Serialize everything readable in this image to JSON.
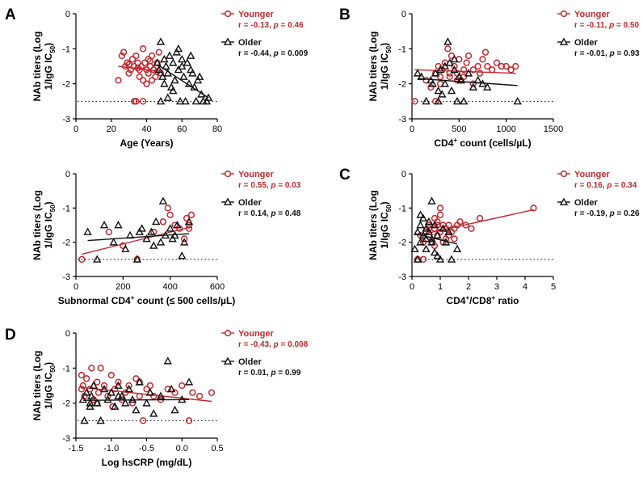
{
  "figure": {
    "ylabel_line1": "NAb titers (Log",
    "ylabel_line2_pre": "1/IgG  IC",
    "ylabel_line2_sub": "50",
    "ylabel_line2_post": ")",
    "colors": {
      "younger": "#c0282e",
      "older": "#111111",
      "axis": "#000000"
    }
  },
  "chart_data": [
    {
      "panel": "A",
      "type": "scatter",
      "xlabel": "Age (Years)",
      "ylabel": "NAb titers (Log 1/IgG IC50)",
      "xlim": [
        0,
        80
      ],
      "xticks": [
        0,
        20,
        40,
        60,
        80
      ],
      "xtick_labels": [
        "0",
        "20",
        "40",
        "60",
        "80"
      ],
      "ylim": [
        -3,
        0
      ],
      "yticks": [
        0,
        -1,
        -2,
        -3
      ],
      "ytick_labels": [
        "0",
        "-1",
        "-2",
        "-3"
      ],
      "detection_limit": -2.5,
      "legend": [
        {
          "group": "Younger",
          "label": "Younger",
          "stats": "r = -0.13, p = 0.46",
          "r": "r = -0.13, ",
          "p_sym": "p",
          "p_val": " = 0.46"
        },
        {
          "group": "Older",
          "label": "Older",
          "stats": "r = -0.44, p = 0.009",
          "r": "r = -0.44, ",
          "p_sym": "p",
          "p_val": " = 0.009"
        }
      ],
      "series": [
        {
          "name": "Younger",
          "marker": "circle",
          "x": [
            24,
            26,
            27,
            28,
            29,
            30,
            31,
            32,
            33,
            34,
            34,
            35,
            36,
            36,
            37,
            38,
            38,
            39,
            40,
            40,
            41,
            41,
            42,
            43,
            43,
            44,
            45,
            46,
            47,
            48,
            33,
            38,
            30,
            35,
            42,
            46
          ],
          "y": [
            -1.9,
            -1.2,
            -1.1,
            -1.5,
            -1.4,
            -1.7,
            -1.6,
            -1.3,
            -1.5,
            -1.2,
            -2.5,
            -1.4,
            -1.8,
            -1.6,
            -1.5,
            -1.0,
            -1.9,
            -1.4,
            -1.6,
            -2.0,
            -1.3,
            -1.7,
            -1.5,
            -1.9,
            -1.2,
            -1.6,
            -1.8,
            -1.4,
            -1.1,
            -1.7,
            -2.5,
            -2.5,
            -1.45,
            -1.55,
            -1.35,
            -1.65
          ],
          "fit": {
            "x": [
              24,
              48
            ],
            "y": [
              -1.5,
              -1.65
            ]
          }
        },
        {
          "name": "Older",
          "marker": "triangle",
          "x": [
            46,
            47,
            48,
            49,
            50,
            50,
            51,
            52,
            53,
            54,
            55,
            56,
            57,
            58,
            59,
            60,
            61,
            62,
            63,
            64,
            65,
            66,
            67,
            68,
            69,
            70,
            71,
            72,
            74,
            75,
            48,
            55,
            60,
            65,
            52,
            58
          ],
          "y": [
            -1.4,
            -1.6,
            -0.8,
            -1.8,
            -1.3,
            -2.0,
            -1.5,
            -1.7,
            -1.2,
            -2.1,
            -1.4,
            -1.9,
            -1.1,
            -1.6,
            -2.5,
            -1.3,
            -1.8,
            -2.5,
            -1.4,
            -2.0,
            -1.6,
            -1.7,
            -2.1,
            -2.5,
            -1.9,
            -1.8,
            -2.3,
            -2.5,
            -2.5,
            -2.4,
            -2.5,
            -2.2,
            -1.5,
            -1.2,
            -2.4,
            -1.0
          ],
          "fit": {
            "x": [
              46,
              75
            ],
            "y": [
              -1.45,
              -2.4
            ]
          }
        }
      ]
    },
    {
      "panel": "B",
      "type": "scatter",
      "xlabel_pre": "CD4",
      "xlabel_sup": "+",
      "xlabel_post": " count (cells/µL)",
      "xlim": [
        0,
        1500
      ],
      "xticks": [
        0,
        500,
        1000,
        1500
      ],
      "xtick_labels": [
        "0",
        "500",
        "1000",
        "1500"
      ],
      "ylim": [
        -3,
        0
      ],
      "yticks": [
        0,
        -1,
        -2,
        -3
      ],
      "ytick_labels": [
        "0",
        "-1",
        "-2",
        "-3"
      ],
      "detection_limit": -2.5,
      "legend": [
        {
          "group": "Younger",
          "label": "Younger",
          "stats": "r = -0.11, p = 0.50",
          "r": "r = -0.11, ",
          "p_sym": "p",
          "p_val": " = 0.50"
        },
        {
          "group": "Older",
          "label": "Older",
          "stats": "r = -0.01, p = 0.93",
          "r": "r = -0.01, ",
          "p_sym": "p",
          "p_val": " = 0.93"
        }
      ],
      "series": [
        {
          "name": "Younger",
          "marker": "circle",
          "x": [
            30,
            150,
            200,
            250,
            280,
            300,
            320,
            350,
            380,
            400,
            420,
            450,
            480,
            500,
            520,
            550,
            580,
            600,
            650,
            700,
            720,
            750,
            780,
            800,
            850,
            900,
            950,
            1000,
            1050,
            1100,
            250,
            400,
            550,
            650,
            300,
            480
          ],
          "y": [
            -2.5,
            -1.9,
            -2.1,
            -1.7,
            -1.5,
            -2.0,
            -1.6,
            -1.4,
            -1.0,
            -1.8,
            -1.2,
            -1.5,
            -1.7,
            -1.3,
            -1.9,
            -1.6,
            -1.4,
            -1.2,
            -2.0,
            -1.5,
            -1.7,
            -1.3,
            -1.1,
            -1.5,
            -1.6,
            -1.4,
            -1.5,
            -1.5,
            -1.6,
            -1.5,
            -2.5,
            -1.7,
            -1.8,
            -1.6,
            -1.8,
            -1.9
          ],
          "fit": {
            "x": [
              30,
              1100
            ],
            "y": [
              -1.6,
              -1.7
            ]
          }
        },
        {
          "name": "Older",
          "marker": "triangle",
          "x": [
            60,
            100,
            150,
            200,
            220,
            250,
            280,
            300,
            320,
            350,
            380,
            400,
            420,
            450,
            480,
            500,
            520,
            550,
            600,
            650,
            700,
            750,
            800,
            1120,
            350,
            450,
            280
          ],
          "y": [
            -1.7,
            -1.8,
            -2.5,
            -1.9,
            -2.0,
            -1.7,
            -2.5,
            -1.6,
            -2.3,
            -2.0,
            -0.8,
            -1.4,
            -2.2,
            -1.6,
            -2.5,
            -1.8,
            -1.9,
            -2.5,
            -1.7,
            -2.1,
            -1.9,
            -2.0,
            -2.1,
            -2.5,
            -1.5,
            -1.3,
            -2.2
          ],
          "fit": {
            "x": [
              60,
              1120
            ],
            "y": [
              -1.85,
              -2.05
            ]
          }
        }
      ]
    },
    {
      "panel": "A2",
      "type": "scatter",
      "xlabel": "Subnormal CD4⁺ count (≤ 500 cells/µL)",
      "xlabel_pre": "Subnormal CD4",
      "xlabel_sup": "+",
      "xlabel_post": " count (≤ 500 cells/µL)",
      "xlim": [
        0,
        600
      ],
      "xticks": [
        0,
        200,
        400,
        600
      ],
      "xtick_labels": [
        "0",
        "200",
        "400",
        "600"
      ],
      "ylim": [
        -3,
        0
      ],
      "yticks": [
        0,
        -1,
        -2,
        -3
      ],
      "ytick_labels": [
        "0",
        "-1",
        "-2",
        "-3"
      ],
      "detection_limit": -2.5,
      "legend": [
        {
          "group": "Younger",
          "label": "Younger",
          "stats": "r = 0.55, p = 0.03",
          "r": "r = 0.55, ",
          "p_sym": "p",
          "p_val": " = 0.03"
        },
        {
          "group": "Older",
          "label": "Older",
          "stats": "r = 0.14, p = 0.48",
          "r": "r = 0.14, ",
          "p_sym": "p",
          "p_val": " = 0.48"
        }
      ],
      "series": [
        {
          "name": "Younger",
          "marker": "circle",
          "x": [
            25,
            140,
            200,
            260,
            330,
            370,
            390,
            400,
            420,
            440,
            460,
            470,
            480,
            490,
            480
          ],
          "y": [
            -2.5,
            -1.7,
            -2.1,
            -2.5,
            -1.7,
            -1.4,
            -1.0,
            -1.2,
            -1.5,
            -1.6,
            -1.9,
            -1.3,
            -1.6,
            -1.2,
            -1.5
          ],
          "fit": {
            "x": [
              25,
              490
            ],
            "y": [
              -2.35,
              -1.55
            ]
          }
        },
        {
          "name": "Older",
          "marker": "triangle",
          "x": [
            50,
            90,
            120,
            160,
            180,
            210,
            230,
            260,
            280,
            300,
            320,
            340,
            360,
            370,
            380,
            400,
            420,
            430,
            450,
            460,
            480,
            270,
            330,
            410
          ],
          "y": [
            -1.7,
            -2.5,
            -1.5,
            -2.0,
            -1.5,
            -2.2,
            -1.8,
            -2.5,
            -1.6,
            -1.9,
            -1.7,
            -1.4,
            -2.0,
            -0.8,
            -1.8,
            -1.6,
            -1.8,
            -1.5,
            -2.4,
            -2.0,
            -1.4,
            -1.7,
            -2.1,
            -1.9
          ],
          "fit": {
            "x": [
              50,
              480
            ],
            "y": [
              -1.95,
              -1.75
            ]
          }
        }
      ]
    },
    {
      "panel": "C",
      "type": "scatter",
      "xlabel_pre": "CD4",
      "xlabel_sup": "+",
      "xlabel_post": "/CD8",
      "xlabel_sup2": "+",
      "xlabel_post2": " ratio",
      "xlim": [
        0,
        5
      ],
      "xticks": [
        0,
        1,
        2,
        3,
        4,
        5
      ],
      "xtick_labels": [
        "0",
        "1",
        "2",
        "3",
        "4",
        "5"
      ],
      "ylim": [
        -3,
        0
      ],
      "yticks": [
        0,
        -1,
        -2,
        -3
      ],
      "ytick_labels": [
        "0",
        "-1",
        "-2",
        "-3"
      ],
      "detection_limit": -2.5,
      "legend": [
        {
          "group": "Younger",
          "label": "Younger",
          "stats": "r = 0.16, p = 0.34",
          "r": "r = 0.16, ",
          "p_sym": "p",
          "p_val": " = 0.34"
        },
        {
          "group": "Older",
          "label": "Older",
          "stats": "r = -0.19, p = 0.26",
          "r": "r = -0.19, ",
          "p_sym": "p",
          "p_val": " = 0.26"
        }
      ],
      "series": [
        {
          "name": "Younger",
          "marker": "circle",
          "x": [
            0.2,
            0.3,
            0.4,
            0.5,
            0.6,
            0.7,
            0.8,
            0.8,
            0.9,
            0.9,
            1.0,
            1.0,
            1.1,
            1.1,
            1.2,
            1.2,
            1.3,
            1.4,
            1.5,
            1.6,
            1.7,
            1.9,
            2.1,
            2.4,
            4.3,
            0.6,
            0.8,
            1.0,
            1.3,
            0.4,
            0.9,
            1.5
          ],
          "y": [
            -2.5,
            -1.8,
            -2.5,
            -1.7,
            -1.5,
            -2.0,
            -1.6,
            -1.3,
            -1.8,
            -1.4,
            -1.0,
            -1.7,
            -1.5,
            -2.0,
            -1.6,
            -1.9,
            -1.5,
            -1.7,
            -1.6,
            -1.5,
            -1.4,
            -1.5,
            -1.6,
            -1.3,
            -1.0,
            -1.6,
            -2.1,
            -1.2,
            -1.8,
            -2.0,
            -1.5,
            -1.9
          ],
          "fit": {
            "x": [
              0.2,
              4.3
            ],
            "y": [
              -1.8,
              -1.05
            ]
          }
        },
        {
          "name": "Older",
          "marker": "triangle",
          "x": [
            0.1,
            0.2,
            0.2,
            0.3,
            0.3,
            0.4,
            0.4,
            0.5,
            0.5,
            0.6,
            0.6,
            0.7,
            0.7,
            0.8,
            0.8,
            0.9,
            1.0,
            1.1,
            1.2,
            1.3,
            1.4,
            1.6,
            0.3,
            0.5,
            0.7,
            0.9
          ],
          "y": [
            -2.2,
            -1.7,
            -2.5,
            -1.5,
            -2.0,
            -1.8,
            -1.3,
            -1.6,
            -2.2,
            -1.7,
            -1.4,
            -1.9,
            -0.8,
            -1.5,
            -2.3,
            -1.8,
            -2.5,
            -1.6,
            -2.0,
            -1.7,
            -2.5,
            -2.2,
            -1.2,
            -1.9,
            -2.0,
            -2.4
          ],
          "fit": {
            "x": [
              0.1,
              1.6
            ],
            "y": [
              -1.75,
              -2.05
            ]
          }
        }
      ]
    },
    {
      "panel": "D",
      "type": "scatter",
      "xlabel": "Log hsCRP (mg/dL)",
      "xlim": [
        -1.5,
        0.5
      ],
      "xticks": [
        -1.5,
        -1.0,
        -0.5,
        0.0,
        0.5
      ],
      "xtick_labels": [
        "-1.5",
        "-1.0",
        "-0.5",
        "0.0",
        "0.5"
      ],
      "ylim": [
        -3,
        0
      ],
      "yticks": [
        0,
        -1,
        -2,
        -3
      ],
      "ytick_labels": [
        "0",
        "-1",
        "-2",
        "-3"
      ],
      "detection_limit": -2.5,
      "legend": [
        {
          "group": "Younger",
          "label": "Younger",
          "stats": "r = -0.43, p = 0.008",
          "r": "r = -0.43, ",
          "p_sym": "p",
          "p_val": " = 0.008"
        },
        {
          "group": "Older",
          "label": "Older",
          "stats": "r = 0.01, p = 0.99",
          "r": "r = 0.01, ",
          "p_sym": "p",
          "p_val": " = 0.99"
        }
      ],
      "series": [
        {
          "name": "Younger",
          "marker": "circle",
          "x": [
            -1.42,
            -1.4,
            -1.38,
            -1.35,
            -1.3,
            -1.28,
            -1.25,
            -1.2,
            -1.18,
            -1.15,
            -1.1,
            -1.05,
            -1.0,
            -0.98,
            -0.95,
            -0.9,
            -0.85,
            -0.8,
            -0.75,
            -0.7,
            -0.65,
            -0.6,
            -0.55,
            -0.5,
            -0.45,
            -0.4,
            -0.3,
            -0.2,
            -0.1,
            0.0,
            0.1,
            0.15,
            0.25,
            0.42,
            -1.42,
            -1.2,
            -0.6
          ],
          "y": [
            -1.2,
            -1.5,
            -1.8,
            -1.3,
            -1.6,
            -1.0,
            -1.9,
            -1.4,
            -1.7,
            -1.0,
            -1.5,
            -1.8,
            -1.2,
            -2.1,
            -1.6,
            -1.4,
            -1.9,
            -1.7,
            -1.5,
            -2.0,
            -1.3,
            -1.8,
            -2.5,
            -1.6,
            -1.5,
            -1.8,
            -1.9,
            -1.6,
            -1.7,
            -1.5,
            -2.5,
            -1.7,
            -1.8,
            -1.7,
            -1.6,
            -2.0,
            -1.4
          ],
          "fit": {
            "x": [
              -1.42,
              0.42
            ],
            "y": [
              -1.55,
              -1.95
            ]
          }
        },
        {
          "name": "Older",
          "marker": "triangle",
          "x": [
            -1.4,
            -1.38,
            -1.35,
            -1.3,
            -1.28,
            -1.25,
            -1.2,
            -1.15,
            -1.1,
            -1.05,
            -1.0,
            -0.95,
            -0.9,
            -0.85,
            -0.8,
            -0.75,
            -0.7,
            -0.65,
            -0.6,
            -0.5,
            -0.45,
            -0.4,
            -0.3,
            -0.2,
            -0.15,
            -0.1,
            0.0,
            0.1,
            -1.3,
            -0.9
          ],
          "y": [
            -1.9,
            -2.5,
            -1.7,
            -2.1,
            -1.8,
            -1.5,
            -2.0,
            -2.5,
            -1.6,
            -1.9,
            -1.7,
            -2.1,
            -1.5,
            -1.8,
            -2.0,
            -1.6,
            -1.9,
            -2.2,
            -1.4,
            -2.0,
            -1.7,
            -2.3,
            -1.8,
            -0.8,
            -1.6,
            -2.2,
            -1.9,
            -1.4,
            -2.0,
            -1.8
          ],
          "fit": {
            "x": [
              -1.4,
              0.1
            ],
            "y": [
              -1.92,
              -1.9
            ]
          }
        }
      ]
    }
  ],
  "panel_letters": [
    "A",
    "B",
    "C",
    "D"
  ]
}
